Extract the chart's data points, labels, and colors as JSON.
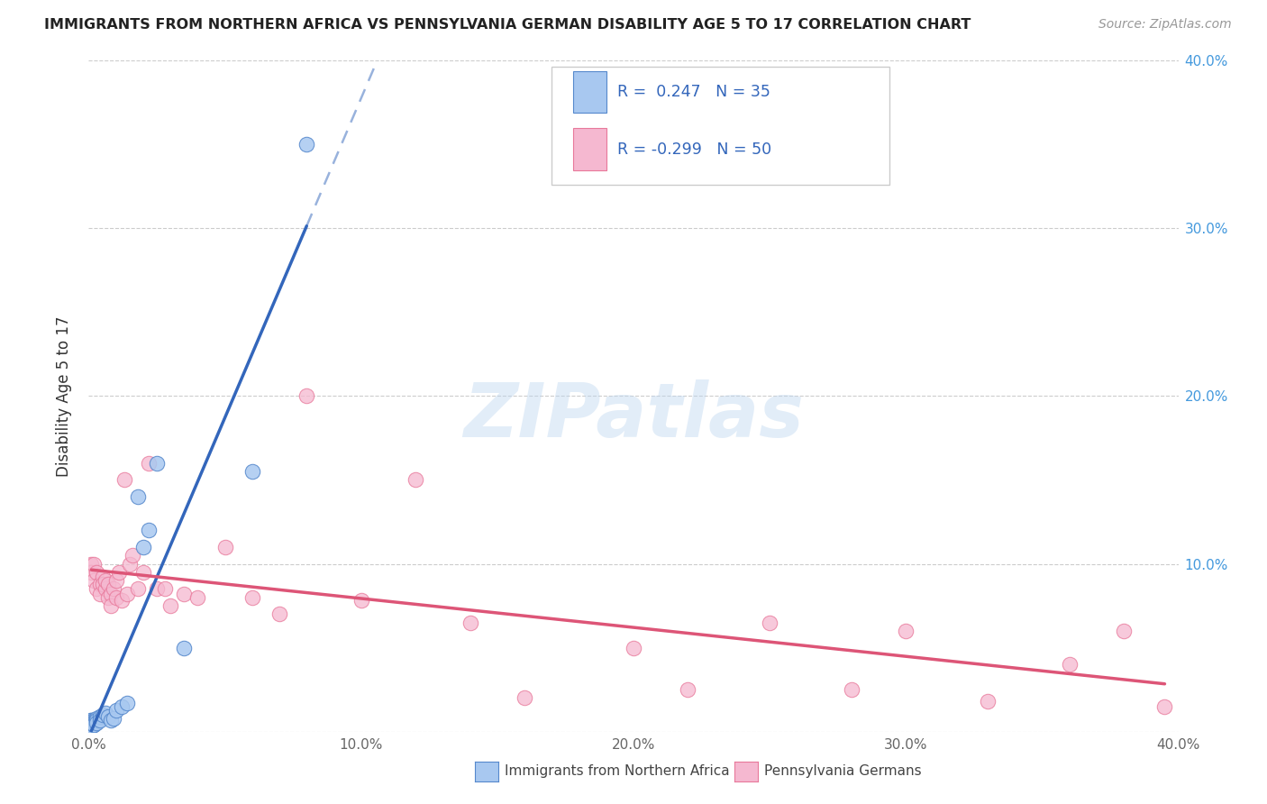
{
  "title": "IMMIGRANTS FROM NORTHERN AFRICA VS PENNSYLVANIA GERMAN DISABILITY AGE 5 TO 17 CORRELATION CHART",
  "source": "Source: ZipAtlas.com",
  "ylabel": "Disability Age 5 to 17",
  "x_min": 0.0,
  "x_max": 0.4,
  "y_min": 0.0,
  "y_max": 0.4,
  "legend_label1": "Immigrants from Northern Africa",
  "legend_label2": "Pennsylvania Germans",
  "r1": 0.247,
  "n1": 35,
  "r2": -0.299,
  "n2": 50,
  "color1": "#a8c8f0",
  "color2": "#f5b8d0",
  "edge_color1": "#5588cc",
  "edge_color2": "#e8789a",
  "line_color1": "#3366bb",
  "line_color2": "#dd5577",
  "text_color_rn": "#3366bb",
  "watermark": "ZIPatlas",
  "blue_x": [
    0.001,
    0.001,
    0.001,
    0.001,
    0.001,
    0.001,
    0.001,
    0.001,
    0.001,
    0.001,
    0.002,
    0.002,
    0.002,
    0.002,
    0.002,
    0.003,
    0.003,
    0.003,
    0.004,
    0.004,
    0.005,
    0.006,
    0.007,
    0.008,
    0.009,
    0.01,
    0.012,
    0.014,
    0.018,
    0.02,
    0.022,
    0.025,
    0.035,
    0.06,
    0.08
  ],
  "blue_y": [
    0.007,
    0.007,
    0.006,
    0.006,
    0.005,
    0.005,
    0.004,
    0.004,
    0.003,
    0.003,
    0.007,
    0.006,
    0.005,
    0.004,
    0.004,
    0.008,
    0.007,
    0.005,
    0.009,
    0.007,
    0.01,
    0.011,
    0.009,
    0.007,
    0.008,
    0.013,
    0.015,
    0.017,
    0.14,
    0.11,
    0.12,
    0.16,
    0.05,
    0.155,
    0.35
  ],
  "pink_x": [
    0.001,
    0.001,
    0.002,
    0.002,
    0.003,
    0.003,
    0.004,
    0.004,
    0.005,
    0.005,
    0.006,
    0.006,
    0.007,
    0.007,
    0.008,
    0.008,
    0.009,
    0.01,
    0.01,
    0.011,
    0.012,
    0.013,
    0.014,
    0.015,
    0.016,
    0.018,
    0.02,
    0.022,
    0.025,
    0.028,
    0.03,
    0.035,
    0.04,
    0.05,
    0.06,
    0.07,
    0.08,
    0.1,
    0.12,
    0.14,
    0.16,
    0.2,
    0.22,
    0.25,
    0.28,
    0.3,
    0.33,
    0.36,
    0.38,
    0.395
  ],
  "pink_y": [
    0.1,
    0.095,
    0.1,
    0.09,
    0.095,
    0.085,
    0.088,
    0.082,
    0.092,
    0.088,
    0.085,
    0.09,
    0.08,
    0.088,
    0.082,
    0.075,
    0.085,
    0.09,
    0.08,
    0.095,
    0.078,
    0.15,
    0.082,
    0.1,
    0.105,
    0.085,
    0.095,
    0.16,
    0.085,
    0.085,
    0.075,
    0.082,
    0.08,
    0.11,
    0.08,
    0.07,
    0.2,
    0.078,
    0.15,
    0.065,
    0.02,
    0.05,
    0.025,
    0.065,
    0.025,
    0.06,
    0.018,
    0.04,
    0.06,
    0.015
  ],
  "blue_line_x_start": 0.001,
  "blue_line_x_solid_end": 0.08,
  "blue_line_x_dash_end": 0.4,
  "pink_line_x_start": 0.001,
  "pink_line_x_end": 0.395
}
